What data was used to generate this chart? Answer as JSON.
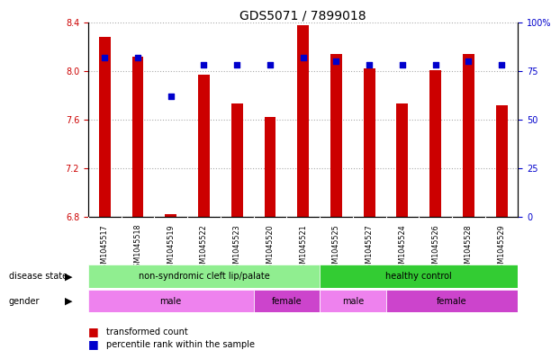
{
  "title": "GDS5071 / 7899018",
  "samples": [
    "GSM1045517",
    "GSM1045518",
    "GSM1045519",
    "GSM1045522",
    "GSM1045523",
    "GSM1045520",
    "GSM1045521",
    "GSM1045525",
    "GSM1045527",
    "GSM1045524",
    "GSM1045526",
    "GSM1045528",
    "GSM1045529"
  ],
  "bar_values": [
    8.28,
    8.12,
    6.82,
    7.97,
    7.73,
    7.62,
    8.38,
    8.14,
    8.02,
    7.73,
    8.01,
    8.14,
    7.72
  ],
  "dot_values": [
    82,
    82,
    62,
    78,
    78,
    78,
    82,
    80,
    78,
    78,
    78,
    80,
    78
  ],
  "bar_bottom": 6.8,
  "ylim_left": [
    6.8,
    8.4
  ],
  "ylim_right": [
    0,
    100
  ],
  "yticks_left": [
    6.8,
    7.2,
    7.6,
    8.0,
    8.4
  ],
  "yticks_right": [
    0,
    25,
    50,
    75,
    100
  ],
  "bar_color": "#cc0000",
  "dot_color": "#0000cc",
  "grid_color": "#aaaaaa",
  "ds_cleft_color": "#90ee90",
  "ds_healthy_color": "#33cc33",
  "gender_male_color": "#ee82ee",
  "gender_female_color": "#cc44cc",
  "sample_bg_color": "#cccccc",
  "bar_width": 0.35,
  "label_fontsize": 7.5,
  "tick_fontsize": 7,
  "title_fontsize": 10
}
